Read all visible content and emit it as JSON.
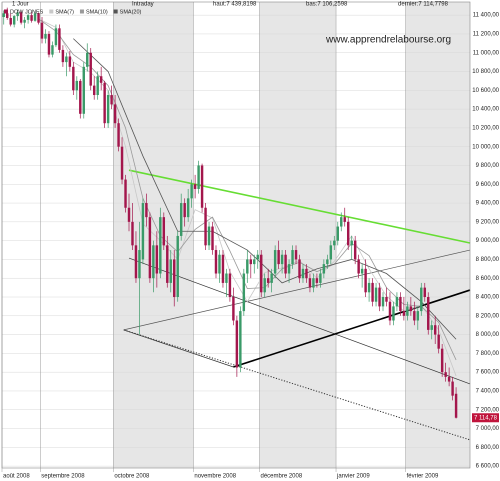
{
  "chart_data": {
    "type": "candlestick",
    "period": "1 Jour",
    "mode": "Intraday",
    "high_text": "haut:7 439,8198",
    "low_text": "bas:7 106,2598",
    "last_text": "dernier:7 114,7798",
    "watermark": "www.apprendrelabourse.org",
    "last_value_label": "7 114,78",
    "up_color": "#3a9a68",
    "down_color": "#a3164c",
    "grid": true,
    "xlim": [
      -0.5,
      134
    ],
    "ylim": [
      6580,
      11540
    ],
    "xticks": [
      {
        "value": 0,
        "label": "août 2008"
      },
      {
        "value": 11,
        "label": "septembre 2008"
      },
      {
        "value": 32,
        "label": "octobre 2008"
      },
      {
        "value": 55,
        "label": "novembre 2008"
      },
      {
        "value": 74,
        "label": "décembre 2008"
      },
      {
        "value": 96,
        "label": "janvier 2009"
      },
      {
        "value": 116,
        "label": "février 2009"
      }
    ],
    "shaded_months": [
      2,
      4,
      6
    ],
    "yticks": [
      {
        "value": 6600,
        "label": "6 600,00"
      },
      {
        "value": 6800,
        "label": "6 800,00"
      },
      {
        "value": 7000,
        "label": "7 000,00"
      },
      {
        "value": 7200,
        "label": "7 200,00"
      },
      {
        "value": 7400,
        "label": "7 400,00"
      },
      {
        "value": 7600,
        "label": "7 600,00"
      },
      {
        "value": 7800,
        "label": "7 800,00"
      },
      {
        "value": 8000,
        "label": "8 000,00"
      },
      {
        "value": 8200,
        "label": "8 200,00"
      },
      {
        "value": 8400,
        "label": "8 400,00"
      },
      {
        "value": 8600,
        "label": "8 600,00"
      },
      {
        "value": 8800,
        "label": "8 800,00"
      },
      {
        "value": 9000,
        "label": "9 000,00"
      },
      {
        "value": 9200,
        "label": "9 200,00"
      },
      {
        "value": 9400,
        "label": "9 400,00"
      },
      {
        "value": 9600,
        "label": "9 600,00"
      },
      {
        "value": 9800,
        "label": "9 800,00"
      },
      {
        "value": 10000,
        "label": "10 000,00"
      },
      {
        "value": 10200,
        "label": "10 200,00"
      },
      {
        "value": 10400,
        "label": "10 400,00"
      },
      {
        "value": 10600,
        "label": "10 600,00"
      },
      {
        "value": 10800,
        "label": "10 800,00"
      },
      {
        "value": 11000,
        "label": "11 000,00"
      },
      {
        "value": 11200,
        "label": "11 200,00"
      },
      {
        "value": 11400,
        "label": "11 400,00"
      }
    ],
    "series": [
      {
        "name": "DOW JONES",
        "color": "#a3164c",
        "ohlc": [
          [
            11380,
            11450,
            11300,
            11420
          ],
          [
            11420,
            11480,
            11350,
            11370
          ],
          [
            11370,
            11420,
            11280,
            11300
          ],
          [
            11300,
            11400,
            11270,
            11390
          ],
          [
            11390,
            11460,
            11340,
            11430
          ],
          [
            11430,
            11440,
            11300,
            11320
          ],
          [
            11320,
            11380,
            11260,
            11350
          ],
          [
            11350,
            11420,
            11310,
            11400
          ],
          [
            11400,
            11430,
            11320,
            11340
          ],
          [
            11340,
            11440,
            11330,
            11420
          ],
          [
            11420,
            11430,
            11300,
            11320
          ],
          [
            11320,
            11380,
            11100,
            11150
          ],
          [
            11150,
            11250,
            11100,
            11200
          ],
          [
            11200,
            11230,
            10950,
            10980
          ],
          [
            10980,
            11120,
            10950,
            11080
          ],
          [
            11080,
            11300,
            11060,
            11260
          ],
          [
            11260,
            11300,
            11000,
            11030
          ],
          [
            11030,
            11080,
            10850,
            10900
          ],
          [
            10900,
            11000,
            10750,
            10960
          ],
          [
            10960,
            11020,
            10800,
            10850
          ],
          [
            10850,
            10900,
            10550,
            10600
          ],
          [
            10600,
            10750,
            10500,
            10700
          ],
          [
            10700,
            10720,
            10300,
            10350
          ],
          [
            10350,
            10900,
            10300,
            10850
          ],
          [
            10850,
            11100,
            10800,
            11000
          ],
          [
            11000,
            11050,
            10600,
            10650
          ],
          [
            10650,
            10750,
            10500,
            10550
          ],
          [
            10550,
            10800,
            10500,
            10750
          ],
          [
            10750,
            10850,
            10600,
            10680
          ],
          [
            10680,
            10700,
            10200,
            10250
          ],
          [
            10250,
            10600,
            10200,
            10550
          ],
          [
            10550,
            10650,
            10400,
            10450
          ],
          [
            10450,
            10550,
            10200,
            10250
          ],
          [
            10250,
            10300,
            9950,
            10000
          ],
          [
            10000,
            10100,
            9600,
            9650
          ],
          [
            9650,
            9700,
            9300,
            9350
          ],
          [
            9350,
            9500,
            9100,
            9200
          ],
          [
            9200,
            9400,
            8900,
            8950
          ],
          [
            8950,
            9100,
            8550,
            8600
          ],
          [
            8600,
            9200,
            8000,
            8900
          ],
          [
            8800,
            9450,
            8750,
            9400
          ],
          [
            9400,
            9500,
            9150,
            9250
          ],
          [
            9250,
            9300,
            8550,
            8600
          ],
          [
            8600,
            9000,
            8450,
            8950
          ],
          [
            8950,
            9100,
            8500,
            8650
          ],
          [
            8650,
            9350,
            8600,
            9250
          ],
          [
            9250,
            9300,
            8900,
            8950
          ],
          [
            8950,
            9050,
            8500,
            8550
          ],
          [
            8550,
            8900,
            8450,
            8800
          ],
          [
            8800,
            8900,
            8300,
            8400
          ],
          [
            8400,
            9100,
            8350,
            9050
          ],
          [
            9050,
            9500,
            9000,
            9400
          ],
          [
            9400,
            9450,
            9150,
            9250
          ],
          [
            9250,
            9550,
            9200,
            9450
          ],
          [
            9450,
            9650,
            9350,
            9600
          ],
          [
            9600,
            9700,
            9450,
            9550
          ],
          [
            9550,
            9850,
            9500,
            9800
          ],
          [
            9800,
            9820,
            9300,
            9350
          ],
          [
            9350,
            9400,
            8900,
            8950
          ],
          [
            8950,
            9200,
            8900,
            9150
          ],
          [
            9150,
            9200,
            8850,
            8900
          ],
          [
            8900,
            8950,
            8600,
            8650
          ],
          [
            8650,
            8900,
            8550,
            8850
          ],
          [
            8850,
            8900,
            8500,
            8550
          ],
          [
            8550,
            8700,
            8400,
            8650
          ],
          [
            8650,
            8700,
            8350,
            8400
          ],
          [
            8400,
            8500,
            8100,
            8150
          ],
          [
            8150,
            8200,
            7550,
            7650
          ],
          [
            7650,
            8300,
            7600,
            8250
          ],
          [
            8250,
            8700,
            8200,
            8650
          ],
          [
            8650,
            8900,
            8550,
            8800
          ],
          [
            8800,
            8850,
            8600,
            8750
          ],
          [
            8750,
            8850,
            8650,
            8800
          ],
          [
            8800,
            8900,
            8700,
            8850
          ],
          [
            8850,
            8900,
            8400,
            8450
          ],
          [
            8450,
            8650,
            8400,
            8600
          ],
          [
            8600,
            8700,
            8500,
            8550
          ],
          [
            8550,
            8700,
            8450,
            8650
          ],
          [
            8650,
            8950,
            8600,
            8900
          ],
          [
            8900,
            9000,
            8700,
            8750
          ],
          [
            8750,
            8900,
            8650,
            8850
          ],
          [
            8850,
            8900,
            8600,
            8650
          ],
          [
            8650,
            8800,
            8550,
            8750
          ],
          [
            8750,
            8950,
            8700,
            8900
          ],
          [
            8900,
            8950,
            8750,
            8800
          ],
          [
            8800,
            8850,
            8550,
            8600
          ],
          [
            8600,
            8750,
            8550,
            8700
          ],
          [
            8700,
            8750,
            8550,
            8600
          ],
          [
            8600,
            8650,
            8450,
            8500
          ],
          [
            8500,
            8650,
            8450,
            8600
          ],
          [
            8600,
            8650,
            8500,
            8550
          ],
          [
            8550,
            8700,
            8500,
            8650
          ],
          [
            8650,
            8800,
            8600,
            8750
          ],
          [
            8750,
            8850,
            8700,
            8800
          ],
          [
            8800,
            9000,
            8750,
            8950
          ],
          [
            8950,
            9050,
            8900,
            9000
          ],
          [
            9000,
            9200,
            8950,
            9150
          ],
          [
            9150,
            9300,
            9100,
            9250
          ],
          [
            9250,
            9350,
            9150,
            9200
          ],
          [
            9200,
            9250,
            8900,
            8950
          ],
          [
            8950,
            9050,
            8800,
            9000
          ],
          [
            9000,
            9050,
            8750,
            8800
          ],
          [
            8800,
            8850,
            8600,
            8650
          ],
          [
            8650,
            8750,
            8500,
            8700
          ],
          [
            8700,
            8800,
            8400,
            8450
          ],
          [
            8450,
            8600,
            8350,
            8550
          ],
          [
            8550,
            8600,
            8300,
            8350
          ],
          [
            8350,
            8550,
            8300,
            8500
          ],
          [
            8500,
            8550,
            8250,
            8300
          ],
          [
            8300,
            8450,
            8250,
            8400
          ],
          [
            8400,
            8500,
            8300,
            8350
          ],
          [
            8350,
            8450,
            8100,
            8150
          ],
          [
            8150,
            8350,
            8100,
            8300
          ],
          [
            8300,
            8450,
            8250,
            8400
          ],
          [
            8400,
            8450,
            8200,
            8250
          ],
          [
            8250,
            8400,
            8150,
            8200
          ],
          [
            8200,
            8350,
            8150,
            8300
          ],
          [
            8300,
            8400,
            8200,
            8250
          ],
          [
            8250,
            8350,
            8100,
            8150
          ],
          [
            8150,
            8300,
            8050,
            8250
          ],
          [
            8250,
            8550,
            8200,
            8500
          ],
          [
            8500,
            8550,
            8350,
            8400
          ],
          [
            8400,
            8450,
            8000,
            8050
          ],
          [
            8050,
            8150,
            7950,
            8100
          ],
          [
            8100,
            8200,
            7900,
            8000
          ],
          [
            8000,
            8100,
            7800,
            7850
          ],
          [
            7850,
            7900,
            7550,
            7600
          ],
          [
            7600,
            7700,
            7500,
            7550
          ],
          [
            7550,
            7650,
            7450,
            7500
          ],
          [
            7500,
            7550,
            7300,
            7350
          ],
          [
            7370,
            7439.8198,
            7106.2598,
            7114.7798
          ]
        ]
      },
      {
        "name": "SMA(7)",
        "color": "#c8c8c8",
        "x": [
          10,
          15,
          20,
          25,
          30,
          35,
          40,
          45,
          50,
          55,
          60,
          65,
          70,
          75,
          80,
          85,
          90,
          95,
          100,
          105,
          110,
          115,
          120,
          125,
          130
        ],
        "values": [
          11360,
          11270,
          10900,
          10790,
          10600,
          10000,
          9180,
          9000,
          8800,
          9330,
          9240,
          8670,
          8350,
          8660,
          8710,
          8790,
          8600,
          8780,
          9050,
          8700,
          8410,
          8250,
          8310,
          8050,
          7560
        ]
      },
      {
        "name": "SMA(10)",
        "color": "#9a9a9a",
        "x": [
          10,
          15,
          20,
          25,
          30,
          35,
          40,
          45,
          50,
          55,
          60,
          65,
          70,
          75,
          80,
          85,
          90,
          95,
          100,
          105,
          110,
          115,
          120,
          125,
          130
        ],
        "values": [
          11360,
          11230,
          10980,
          10850,
          10650,
          10200,
          9450,
          9050,
          8880,
          9120,
          9250,
          8890,
          8490,
          8500,
          8700,
          8770,
          8670,
          8750,
          8970,
          8840,
          8500,
          8320,
          8300,
          8130,
          7730
        ]
      },
      {
        "name": "SMA(20)",
        "color": "#555555",
        "x": [
          20,
          30,
          40,
          50,
          60,
          70,
          80,
          90,
          100,
          110,
          120,
          130
        ],
        "values": [
          11150,
          10800,
          9900,
          9100,
          9100,
          8900,
          8550,
          8700,
          8800,
          8650,
          8350,
          7950
        ]
      }
    ],
    "trendlines": [
      {
        "x": [
          36,
          134
        ],
        "y": [
          9750,
          8975
        ],
        "color": "#66dd33",
        "style": "thick"
      },
      {
        "x": [
          36,
          134
        ],
        "y": [
          8815,
          7475
        ],
        "color": "#333333",
        "style": "thin"
      },
      {
        "x": [
          34.5,
          134
        ],
        "y": [
          8050,
          8900
        ],
        "color": "#555555",
        "style": "thin"
      },
      {
        "x": [
          34.5,
          66
        ],
        "y": [
          8050,
          7655
        ],
        "color": "#333333",
        "style": "thin"
      },
      {
        "x": [
          66,
          134
        ],
        "y": [
          7655,
          8474
        ],
        "color": "#000000",
        "style": "thick"
      },
      {
        "x": [
          34.5,
          134
        ],
        "y": [
          8050,
          6879
        ],
        "color": "#333333",
        "style": "dotted"
      }
    ]
  }
}
